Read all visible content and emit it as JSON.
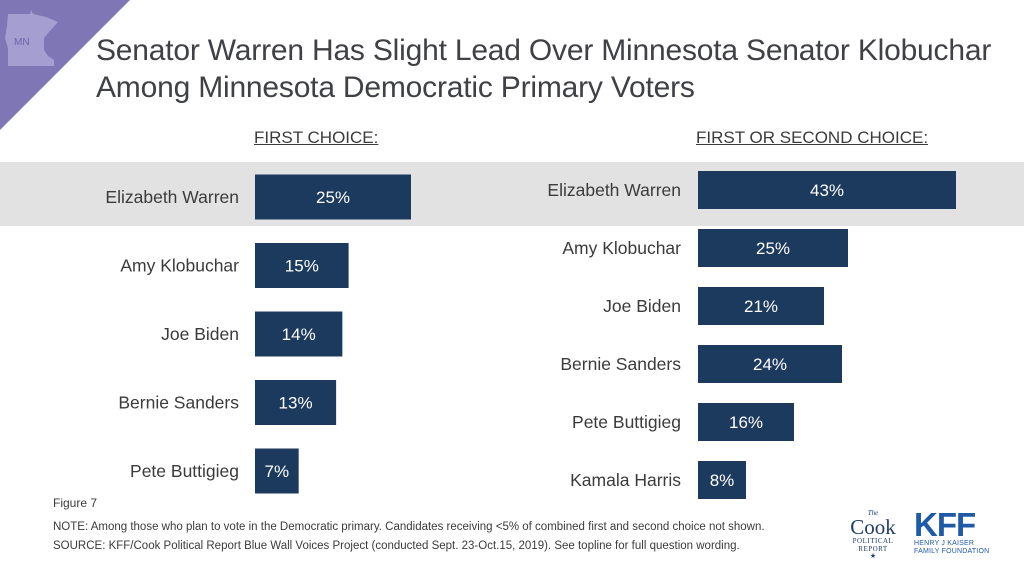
{
  "badge": {
    "state_label": "MN"
  },
  "title": "Senator Warren Has Slight Lead Over Minnesota Senator Klobuchar Among Minnesota Democratic Primary Voters",
  "colors": {
    "bar": "#1c3a5e",
    "highlight": "#e2e2e2",
    "corner": "#7f77b5",
    "state": "#a49fd0"
  },
  "chart_data": [
    {
      "type": "bar",
      "orientation": "horizontal",
      "title": "FIRST CHOICE:",
      "categories": [
        "Elizabeth Warren",
        "Amy Klobuchar",
        "Joe Biden",
        "Bernie Sanders",
        "Pete Buttigieg"
      ],
      "values": [
        25,
        15,
        14,
        13,
        7
      ],
      "labels": [
        "25%",
        "15%",
        "14%",
        "13%",
        "7%"
      ],
      "highlighted_category": "Elizabeth Warren"
    },
    {
      "type": "bar",
      "orientation": "horizontal",
      "title": "FIRST OR SECOND CHOICE:",
      "categories": [
        "Elizabeth Warren",
        "Amy Klobuchar",
        "Joe Biden",
        "Bernie Sanders",
        "Pete Buttigieg",
        "Kamala Harris"
      ],
      "values": [
        43,
        25,
        21,
        24,
        16,
        8
      ],
      "labels": [
        "43%",
        "25%",
        "21%",
        "24%",
        "16%",
        "8%"
      ],
      "highlighted_category": "Elizabeth Warren"
    }
  ],
  "figure_label": "Figure 7",
  "note": "NOTE: Among those who plan to vote in the Democratic primary. Candidates receiving <5% of combined first and second choice not shown.",
  "source": "SOURCE: KFF/Cook Political Report Blue Wall Voices Project (conducted Sept. 23-Oct.15, 2019). See topline for full question wording.",
  "logos": {
    "cook": {
      "the": "The",
      "name": "Cook",
      "line1": "POLITICAL",
      "line2": "REPORT",
      "star": "★"
    },
    "kff": {
      "name": "KFF",
      "line1": "HENRY J KAISER",
      "line2": "FAMILY FOUNDATION"
    }
  }
}
